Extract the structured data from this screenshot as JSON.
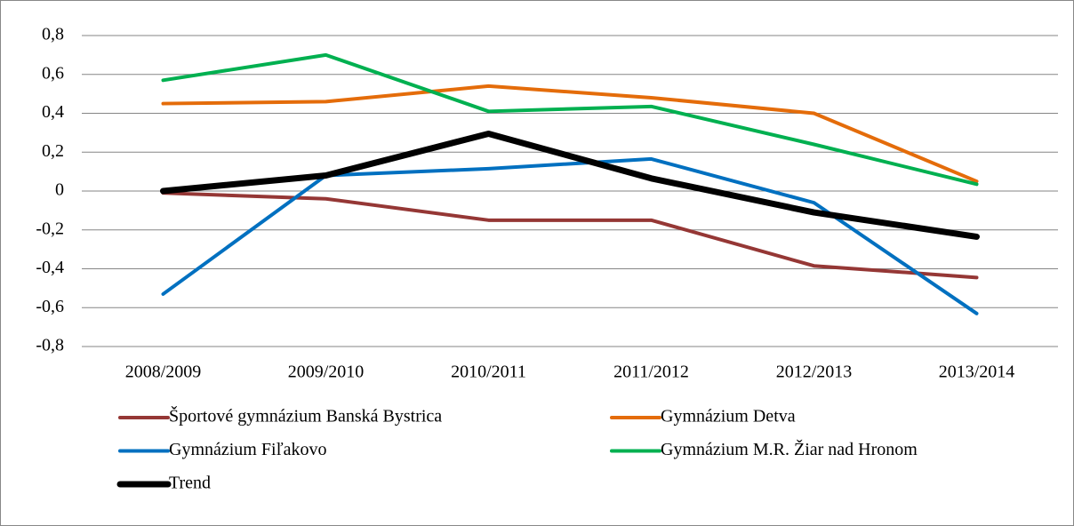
{
  "chart_data": {
    "type": "line",
    "categories": [
      "2008/2009",
      "2009/2010",
      "2010/2011",
      "2011/2012",
      "2012/2013",
      "2013/2014"
    ],
    "series": [
      {
        "name": "Športové gymnázium Banská Bystrica",
        "color": "#953735",
        "values": [
          -0.01,
          -0.04,
          -0.15,
          -0.15,
          -0.385,
          -0.445
        ]
      },
      {
        "name": "Gymnázium Detva",
        "color": "#e46c0a",
        "values": [
          0.45,
          0.46,
          0.54,
          0.48,
          0.4,
          0.05
        ]
      },
      {
        "name": "Gymnázium Fiľakovo",
        "color": "#0070c0",
        "values": [
          -0.53,
          0.08,
          0.115,
          0.165,
          -0.06,
          -0.63
        ]
      },
      {
        "name": "Gymnázium M.R. Žiar nad Hronom",
        "color": "#00b050",
        "values": [
          0.57,
          0.7,
          0.41,
          0.435,
          0.24,
          0.035
        ]
      },
      {
        "name": "Trend",
        "color": "#000000",
        "values": [
          0.0,
          0.08,
          0.295,
          0.065,
          -0.11,
          -0.235
        ]
      }
    ],
    "ylim": [
      -0.8,
      0.8
    ],
    "yticks": [
      {
        "value": -0.8,
        "label": "-0,8"
      },
      {
        "value": -0.6,
        "label": "-0,6"
      },
      {
        "value": -0.4,
        "label": "-0,4"
      },
      {
        "value": -0.2,
        "label": "-0,2"
      },
      0,
      {
        "value": 0.2,
        "label": "0,2"
      },
      {
        "value": 0.4,
        "label": "0,4"
      },
      {
        "value": 0.6,
        "label": "0,6"
      },
      {
        "value": 0.8,
        "label": "0,8"
      }
    ],
    "grid": true,
    "legend": "bottom"
  }
}
